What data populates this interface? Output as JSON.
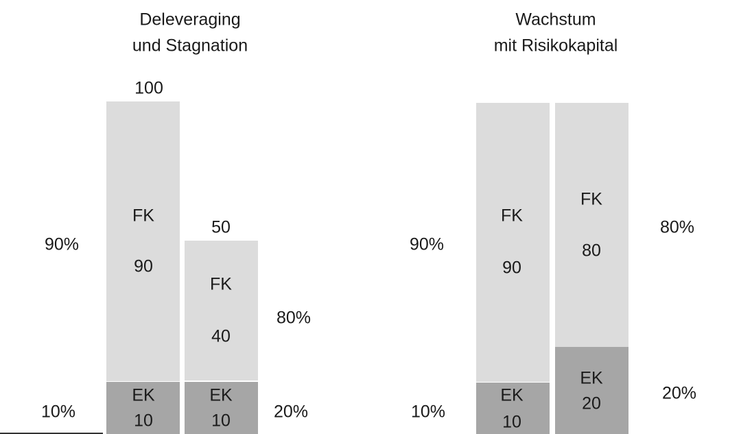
{
  "panels": [
    {
      "title": [
        "Deleveraging",
        "und Stagnation"
      ],
      "bars": [
        {
          "total": 100,
          "segments": [
            {
              "label": "FK",
              "value": 90
            },
            {
              "label": "EK",
              "value": 10
            }
          ]
        },
        {
          "total": 50,
          "segments": [
            {
              "label": "FK",
              "value": 40
            },
            {
              "label": "EK",
              "value": 10
            }
          ]
        }
      ],
      "shares_left": [
        "90%",
        "10%"
      ],
      "shares_right": [
        "80%",
        "20%"
      ]
    },
    {
      "title": [
        "Wachstum",
        "mit Risikokapital"
      ],
      "bars": [
        {
          "segments": [
            {
              "label": "FK",
              "value": 90
            },
            {
              "label": "EK",
              "value": 10
            }
          ]
        },
        {
          "segments": [
            {
              "label": "FK",
              "value": 80
            },
            {
              "label": "EK",
              "value": 20
            }
          ]
        }
      ],
      "shares_left": [
        "90%",
        "10%"
      ],
      "shares_right": [
        "80%",
        "20%"
      ]
    }
  ]
}
